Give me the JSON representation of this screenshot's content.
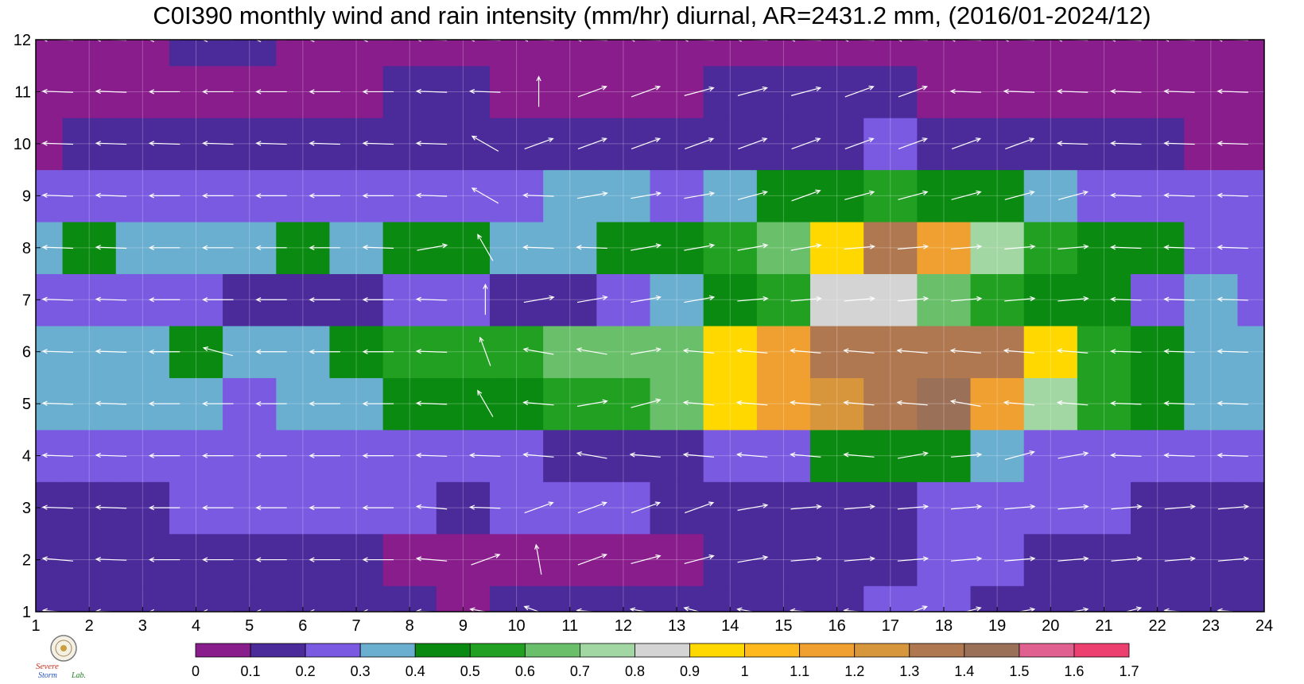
{
  "title": "C0I390 monthly wind and rain intensity (mm/hr) diurnal, AR=2431.2 mm, (2016/01-2024/12)",
  "logo": {
    "text_1": "Severe",
    "text_2": "Storm",
    "text_3": "Lab."
  },
  "chart_data": {
    "type": "heatmap",
    "title": "C0I390 monthly wind and rain intensity (mm/hr) diurnal, AR=2431.2 mm, (2016/01-2024/12)",
    "xlabel": "",
    "ylabel": "",
    "x": [
      1,
      2,
      3,
      4,
      5,
      6,
      7,
      8,
      9,
      10,
      11,
      12,
      13,
      14,
      15,
      16,
      17,
      18,
      19,
      20,
      21,
      22,
      23,
      24
    ],
    "y": [
      1,
      2,
      3,
      4,
      5,
      6,
      7,
      8,
      9,
      10,
      11,
      12
    ],
    "xlim": [
      1,
      24
    ],
    "ylim": [
      1,
      12
    ],
    "grid": true,
    "z": [
      [
        0.18,
        0.15,
        0.12,
        0.13,
        0.13,
        0.12,
        0.11,
        0.1,
        0.09,
        0.1,
        0.11,
        0.12,
        0.14,
        0.16,
        0.18,
        0.19,
        0.2,
        0.2,
        0.19,
        0.18,
        0.16,
        0.14,
        0.12,
        0.1
      ],
      [
        0.15,
        0.14,
        0.14,
        0.14,
        0.15,
        0.14,
        0.13,
        0.08,
        0.08,
        0.07,
        0.08,
        0.09,
        0.09,
        0.11,
        0.13,
        0.15,
        0.17,
        0.2,
        0.21,
        0.1,
        0.17,
        0.15,
        0.13,
        0.12
      ],
      [
        0.19,
        0.16,
        0.17,
        0.24,
        0.26,
        0.25,
        0.23,
        0.2,
        0.19,
        0.2,
        0.21,
        0.2,
        0.17,
        0.14,
        0.16,
        0.18,
        0.19,
        0.21,
        0.24,
        0.22,
        0.2,
        0.18,
        0.17,
        0.18
      ],
      [
        0.27,
        0.25,
        0.23,
        0.28,
        0.3,
        0.28,
        0.25,
        0.24,
        0.21,
        0.2,
        0.17,
        0.16,
        0.18,
        0.22,
        0.3,
        0.42,
        0.4,
        0.43,
        0.33,
        0.28,
        0.26,
        0.24,
        0.22,
        0.21
      ],
      [
        0.31,
        0.32,
        0.33,
        0.34,
        0.28,
        0.35,
        0.37,
        0.45,
        0.48,
        0.48,
        0.5,
        0.52,
        0.68,
        0.9,
        1.2,
        1.25,
        1.32,
        1.42,
        1.1,
        0.75,
        0.5,
        0.4,
        0.33,
        0.32
      ],
      [
        0.31,
        0.33,
        0.32,
        0.42,
        0.39,
        0.34,
        0.42,
        0.52,
        0.52,
        0.55,
        0.62,
        0.62,
        0.7,
        0.95,
        1.15,
        1.35,
        1.35,
        1.3,
        1.38,
        0.98,
        0.5,
        0.43,
        0.38,
        0.32
      ],
      [
        0.23,
        0.26,
        0.28,
        0.25,
        0.18,
        0.15,
        0.18,
        0.24,
        0.25,
        0.17,
        0.19,
        0.28,
        0.35,
        0.42,
        0.58,
        0.82,
        0.8,
        0.7,
        0.6,
        0.48,
        0.44,
        0.28,
        0.32,
        0.27
      ],
      [
        0.33,
        0.42,
        0.34,
        0.31,
        0.33,
        0.42,
        0.37,
        0.44,
        0.44,
        0.36,
        0.33,
        0.42,
        0.48,
        0.52,
        0.62,
        0.95,
        1.35,
        1.1,
        0.78,
        0.6,
        0.48,
        0.4,
        0.28,
        0.26
      ],
      [
        0.26,
        0.22,
        0.22,
        0.21,
        0.21,
        0.22,
        0.23,
        0.24,
        0.25,
        0.27,
        0.33,
        0.36,
        0.3,
        0.34,
        0.42,
        0.48,
        0.5,
        0.48,
        0.44,
        0.36,
        0.28,
        0.22,
        0.2,
        0.2
      ],
      [
        0.08,
        0.12,
        0.14,
        0.13,
        0.12,
        0.13,
        0.14,
        0.15,
        0.16,
        0.15,
        0.16,
        0.15,
        0.17,
        0.18,
        0.18,
        0.18,
        0.2,
        0.19,
        0.17,
        0.15,
        0.13,
        0.11,
        0.09,
        0.08
      ],
      [
        0.05,
        0.05,
        0.05,
        0.06,
        0.06,
        0.06,
        0.08,
        0.12,
        0.11,
        0.08,
        0.08,
        0.08,
        0.09,
        0.11,
        0.11,
        0.1,
        0.11,
        0.08,
        0.07,
        0.06,
        0.05,
        0.05,
        0.05,
        0.05
      ],
      [
        0.06,
        0.06,
        0.07,
        0.16,
        0.13,
        0.06,
        0.06,
        0.06,
        0.06,
        0.06,
        0.06,
        0.06,
        0.06,
        0.06,
        0.06,
        0.06,
        0.06,
        0.06,
        0.06,
        0.06,
        0.06,
        0.06,
        0.06,
        0.06
      ]
    ],
    "colorbar": {
      "ticks": [
        "0",
        "0.1",
        "0.2",
        "0.3",
        "0.4",
        "0.5",
        "0.6",
        "0.7",
        "0.8",
        "0.9",
        "1",
        "1.1",
        "1.2",
        "1.3",
        "1.4",
        "1.5",
        "1.6",
        "1.7"
      ],
      "colors": [
        "#8a1d8c",
        "#4b2a9a",
        "#7a5ae0",
        "#6aaed0",
        "#0a8a10",
        "#22a022",
        "#6ac06a",
        "#a2d6a2",
        "#d4d4d4",
        "#ffd800",
        "#ffb81e",
        "#f0a030",
        "#d8963c",
        "#b07850",
        "#9a7058",
        "#e06090",
        "#ec4070"
      ]
    },
    "wind_arrows": {
      "description_units": "unit vectors per cell (u east, v north), rows y=1..12, cols x=1..24",
      "angles_deg": [
        [
          175,
          178,
          180,
          180,
          180,
          180,
          180,
          178,
          170,
          160,
          175,
          170,
          165,
          170,
          175,
          175,
          20,
          15,
          10,
          10,
          15,
          175,
          175,
          175
        ],
        [
          175,
          178,
          180,
          180,
          180,
          180,
          180,
          175,
          20,
          100,
          20,
          15,
          15,
          10,
          5,
          5,
          5,
          5,
          5,
          5,
          5,
          5,
          5,
          175
        ],
        [
          178,
          178,
          180,
          180,
          180,
          180,
          180,
          175,
          178,
          20,
          20,
          20,
          20,
          10,
          5,
          5,
          5,
          5,
          5,
          5,
          5,
          5,
          5,
          175
        ],
        [
          178,
          178,
          180,
          180,
          180,
          180,
          180,
          178,
          178,
          175,
          170,
          175,
          175,
          175,
          175,
          175,
          10,
          5,
          15,
          10,
          178,
          178,
          178,
          178
        ],
        [
          178,
          178,
          180,
          180,
          180,
          180,
          180,
          178,
          120,
          175,
          10,
          15,
          175,
          175,
          175,
          175,
          175,
          170,
          175,
          175,
          178,
          178,
          178,
          178
        ],
        [
          178,
          178,
          180,
          165,
          180,
          180,
          180,
          178,
          110,
          170,
          170,
          10,
          175,
          175,
          175,
          175,
          175,
          175,
          175,
          175,
          178,
          178,
          178,
          178
        ],
        [
          178,
          178,
          180,
          180,
          180,
          180,
          180,
          178,
          90,
          10,
          10,
          10,
          10,
          5,
          5,
          5,
          5,
          5,
          5,
          5,
          178,
          178,
          178,
          178
        ],
        [
          178,
          178,
          180,
          180,
          180,
          180,
          178,
          10,
          120,
          178,
          178,
          10,
          10,
          10,
          10,
          5,
          5,
          5,
          5,
          5,
          178,
          178,
          178,
          178
        ],
        [
          178,
          178,
          180,
          180,
          180,
          180,
          180,
          178,
          150,
          178,
          10,
          10,
          10,
          15,
          20,
          15,
          15,
          15,
          15,
          15,
          178,
          178,
          178,
          178
        ],
        [
          178,
          178,
          178,
          178,
          178,
          178,
          178,
          178,
          150,
          20,
          20,
          20,
          20,
          20,
          20,
          20,
          20,
          20,
          20,
          178,
          178,
          178,
          178,
          178
        ],
        [
          178,
          178,
          180,
          180,
          180,
          180,
          180,
          178,
          178,
          90,
          20,
          20,
          15,
          15,
          15,
          20,
          20,
          178,
          178,
          178,
          178,
          178,
          178,
          178
        ],
        [
          178,
          178,
          180,
          180,
          180,
          180,
          180,
          178,
          178,
          178,
          178,
          178,
          178,
          178,
          178,
          178,
          178,
          178,
          178,
          178,
          178,
          178,
          178,
          178
        ]
      ]
    }
  }
}
